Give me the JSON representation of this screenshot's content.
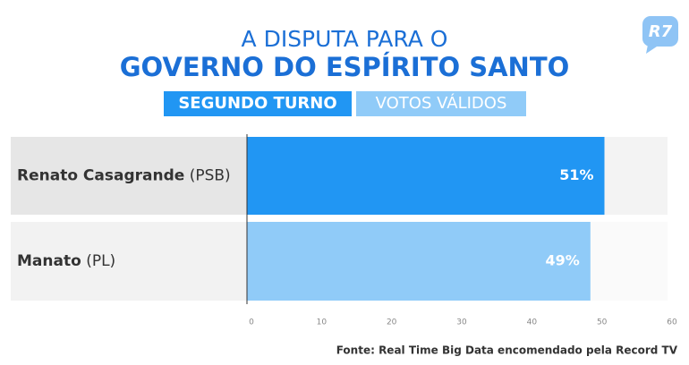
{
  "logo": "R7",
  "chart_data": {
    "type": "bar",
    "orientation": "horizontal",
    "title": "A DISPUTA PARA O",
    "subtitle": "GOVERNO DO ESPÍRITO SANTO",
    "badges": [
      "SEGUNDO TURNO",
      "VOTOS VÁLIDOS"
    ],
    "categories": [
      "Renato Casagrande",
      "Manato"
    ],
    "parties": [
      "(PSB)",
      "(PL)"
    ],
    "values": [
      51,
      49
    ],
    "value_labels": [
      "51%",
      "49%"
    ],
    "colors": [
      "#2196f3",
      "#90cbf8"
    ],
    "xlim": [
      0,
      60
    ],
    "xticks": [
      0,
      10,
      20,
      30,
      40,
      50,
      60
    ],
    "source": "Fonte: Real Time Big Data encomendado pela Record TV"
  }
}
